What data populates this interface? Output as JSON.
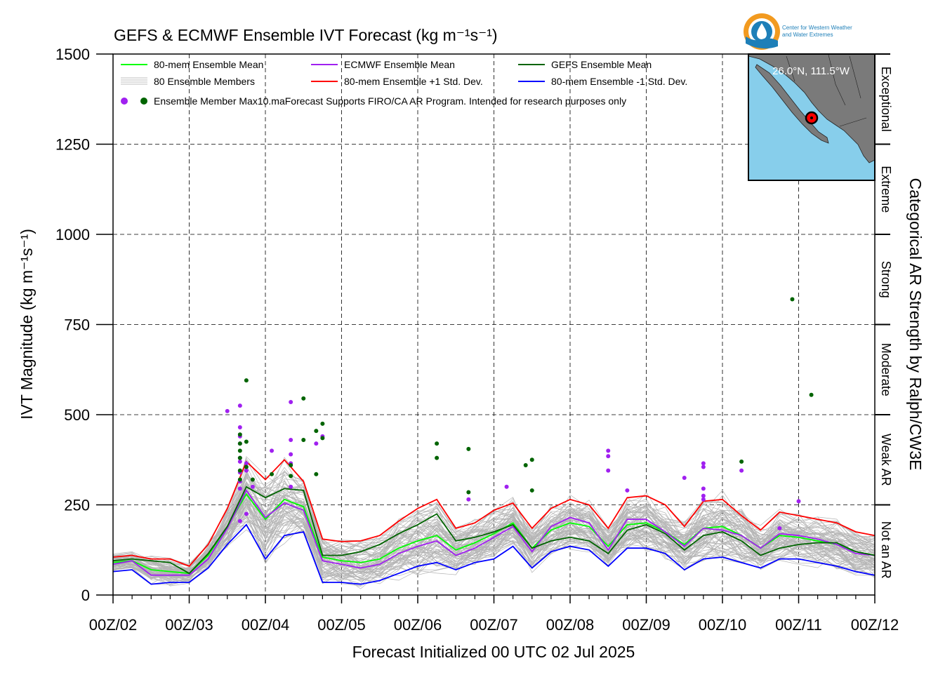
{
  "logo": {
    "line1": "Center for Western Weather",
    "line2": "and Water Extremes",
    "colors": {
      "ring": "#f29a1f",
      "inner": "#1e7fb8"
    }
  },
  "inset_map": {
    "label": "26.0°N, 111.5°W",
    "colors": {
      "ocean": "#87ceeb",
      "land": "#7a7a7a",
      "marker": "#ff0000"
    }
  },
  "legend": {
    "mean_all": "80-mem Ensemble Mean",
    "ecmwf_mean": "ECMWF Ensemble Mean",
    "gefs_mean": "GEFS Ensemble Mean",
    "members": "80 Ensemble Members",
    "plus_sd": "80-mem Ensemble +1 Std. Dev.",
    "minus_sd": "80-mem Ensemble -1 Std. Dev.",
    "max_marker": "Ensemble Member Max",
    "note": "10.maForecast Supports FIRO/CA AR Program. Intended for research purposes only"
  },
  "categories": {
    "title": "Categorical AR Strength by Ralph/CW3E",
    "bands": [
      {
        "label": "Not an AR",
        "lo": 0,
        "hi": 250
      },
      {
        "label": "Weak AR",
        "lo": 250,
        "hi": 500
      },
      {
        "label": "Moderate",
        "lo": 500,
        "hi": 750
      },
      {
        "label": "Strong",
        "lo": 750,
        "hi": 1000
      },
      {
        "label": "Extreme",
        "lo": 1000,
        "hi": 1250
      },
      {
        "label": "Exceptional",
        "lo": 1250,
        "hi": 1500
      }
    ]
  },
  "chart_data": {
    "type": "line",
    "title": "GEFS & ECMWF Ensemble IVT Forecast (kg m⁻¹s⁻¹)",
    "xlabel": "Forecast Initialized 00 UTC 02 Jul 2025",
    "ylabel": "IVT Magnitude (kg m⁻¹s⁻¹)",
    "xlim": [
      0,
      240
    ],
    "ylim": [
      0,
      1500
    ],
    "grid": true,
    "legend_position": "top-left",
    "xticks": [
      0,
      24,
      48,
      72,
      96,
      120,
      144,
      168,
      192,
      216,
      240
    ],
    "xtick_labels": [
      "00Z/02",
      "00Z/03",
      "00Z/04",
      "00Z/05",
      "00Z/06",
      "00Z/07",
      "00Z/08",
      "00Z/09",
      "00Z/10",
      "00Z/11",
      "00Z/12"
    ],
    "yticks": [
      0,
      250,
      500,
      750,
      1000,
      1250,
      1500
    ],
    "x": [
      0,
      6,
      12,
      18,
      24,
      30,
      36,
      42,
      48,
      54,
      60,
      66,
      72,
      78,
      84,
      90,
      96,
      102,
      108,
      114,
      120,
      126,
      132,
      138,
      144,
      150,
      156,
      162,
      168,
      174,
      180,
      186,
      192,
      198,
      204,
      210,
      216,
      222,
      228,
      234,
      240
    ],
    "series": [
      {
        "name": "80-mem Ensemble +1 Std. Dev.",
        "color": "#ff0000",
        "values": [
          105,
          110,
          100,
          100,
          80,
          140,
          240,
          370,
          320,
          375,
          315,
          155,
          148,
          150,
          165,
          205,
          240,
          265,
          185,
          200,
          235,
          255,
          185,
          240,
          265,
          250,
          185,
          270,
          275,
          250,
          190,
          260,
          265,
          220,
          180,
          230,
          220,
          210,
          200,
          175,
          165
        ]
      },
      {
        "name": "80-mem Ensemble Mean",
        "color": "#00ff00",
        "values": [
          90,
          95,
          70,
          65,
          60,
          110,
          190,
          280,
          210,
          265,
          245,
          105,
          95,
          90,
          100,
          130,
          150,
          165,
          125,
          145,
          170,
          200,
          130,
          180,
          200,
          190,
          135,
          195,
          200,
          175,
          140,
          185,
          190,
          165,
          130,
          165,
          160,
          150,
          140,
          120,
          110
        ]
      },
      {
        "name": "ECMWF Ensemble Mean",
        "color": "#a020f0",
        "values": [
          85,
          95,
          55,
          55,
          55,
          100,
          185,
          290,
          215,
          255,
          235,
          95,
          85,
          75,
          85,
          115,
          135,
          150,
          110,
          130,
          160,
          190,
          120,
          190,
          215,
          200,
          125,
          210,
          210,
          175,
          135,
          185,
          180,
          165,
          130,
          170,
          165,
          155,
          140,
          115,
          110
        ]
      },
      {
        "name": "GEFS Ensemble Mean",
        "color": "#006400",
        "values": [
          95,
          100,
          95,
          90,
          60,
          115,
          190,
          300,
          270,
          295,
          290,
          110,
          110,
          120,
          140,
          170,
          195,
          225,
          150,
          160,
          175,
          195,
          130,
          150,
          160,
          150,
          115,
          180,
          195,
          170,
          125,
          165,
          175,
          150,
          110,
          130,
          140,
          145,
          145,
          120,
          110
        ]
      },
      {
        "name": "80-mem Ensemble -1 Std. Dev.",
        "color": "#0000ff",
        "values": [
          65,
          70,
          30,
          35,
          35,
          75,
          140,
          195,
          100,
          165,
          175,
          35,
          35,
          30,
          40,
          60,
          80,
          90,
          70,
          90,
          100,
          135,
          75,
          120,
          135,
          125,
          80,
          130,
          130,
          115,
          70,
          100,
          105,
          90,
          75,
          100,
          100,
          90,
          80,
          65,
          55
        ]
      }
    ],
    "member_max_points": [
      {
        "model": "ECMWF",
        "color": "#a020f0",
        "points": [
          [
            36,
            510
          ],
          [
            40,
            525
          ],
          [
            40,
            465
          ],
          [
            40,
            440
          ],
          [
            40,
            420
          ],
          [
            40,
            380
          ],
          [
            40,
            370
          ],
          [
            40,
            340
          ],
          [
            40,
            315
          ],
          [
            40,
            295
          ],
          [
            40,
            205
          ],
          [
            42,
            365
          ],
          [
            42,
            345
          ],
          [
            42,
            225
          ],
          [
            44,
            300
          ],
          [
            50,
            400
          ],
          [
            56,
            535
          ],
          [
            56,
            430
          ],
          [
            56,
            390
          ],
          [
            56,
            365
          ],
          [
            56,
            300
          ],
          [
            64,
            420
          ],
          [
            66,
            440
          ],
          [
            112,
            265
          ],
          [
            124,
            300
          ],
          [
            156,
            400
          ],
          [
            156,
            385
          ],
          [
            156,
            345
          ],
          [
            162,
            290
          ],
          [
            180,
            325
          ],
          [
            186,
            365
          ],
          [
            186,
            355
          ],
          [
            186,
            295
          ],
          [
            186,
            275
          ],
          [
            186,
            265
          ],
          [
            198,
            345
          ],
          [
            210,
            185
          ],
          [
            216,
            260
          ]
        ]
      },
      {
        "model": "GEFS",
        "color": "#006400",
        "points": [
          [
            40,
            445
          ],
          [
            40,
            420
          ],
          [
            40,
            400
          ],
          [
            40,
            380
          ],
          [
            40,
            345
          ],
          [
            40,
            320
          ],
          [
            42,
            595
          ],
          [
            42,
            425
          ],
          [
            42,
            355
          ],
          [
            44,
            320
          ],
          [
            50,
            335
          ],
          [
            56,
            360
          ],
          [
            56,
            330
          ],
          [
            60,
            545
          ],
          [
            60,
            430
          ],
          [
            64,
            455
          ],
          [
            64,
            335
          ],
          [
            66,
            475
          ],
          [
            66,
            435
          ],
          [
            102,
            420
          ],
          [
            102,
            380
          ],
          [
            112,
            405
          ],
          [
            112,
            285
          ],
          [
            130,
            360
          ],
          [
            132,
            375
          ],
          [
            132,
            290
          ],
          [
            198,
            370
          ],
          [
            214,
            820
          ],
          [
            220,
            555
          ]
        ]
      }
    ]
  }
}
